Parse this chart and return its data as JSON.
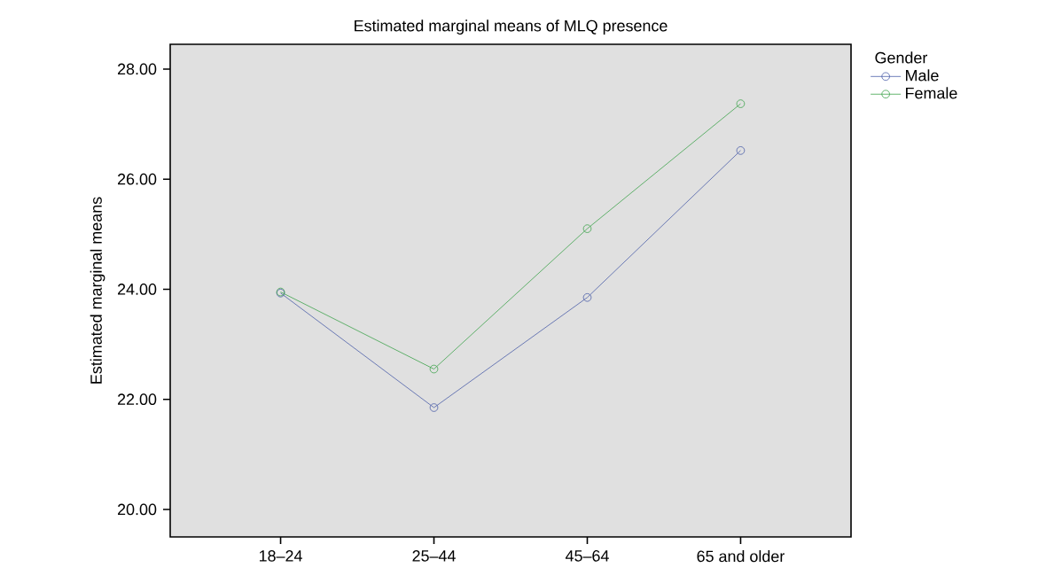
{
  "chart_data": {
    "type": "line",
    "title": "Estimated marginal means of MLQ presence",
    "ylabel": "Estimated marginal means",
    "legend_title": "Gender",
    "categories": [
      "18–24",
      "25–44",
      "45–64",
      "65 and older"
    ],
    "series": [
      {
        "name": "Male",
        "color": "#4b5ea8",
        "values": [
          23.93,
          21.85,
          23.85,
          26.52
        ]
      },
      {
        "name": "Female",
        "color": "#3fa34d",
        "values": [
          23.95,
          22.55,
          25.1,
          27.37
        ]
      }
    ],
    "ylim": [
      19.5,
      28.45
    ],
    "yticks": [
      {
        "value": 20,
        "label": "20.00"
      },
      {
        "value": 22,
        "label": "22.00"
      },
      {
        "value": 24,
        "label": "24.00"
      },
      {
        "value": 26,
        "label": "26.00"
      },
      {
        "value": 28,
        "label": "28.00"
      }
    ],
    "marker": "circle",
    "legend": "top right",
    "grid": false
  }
}
